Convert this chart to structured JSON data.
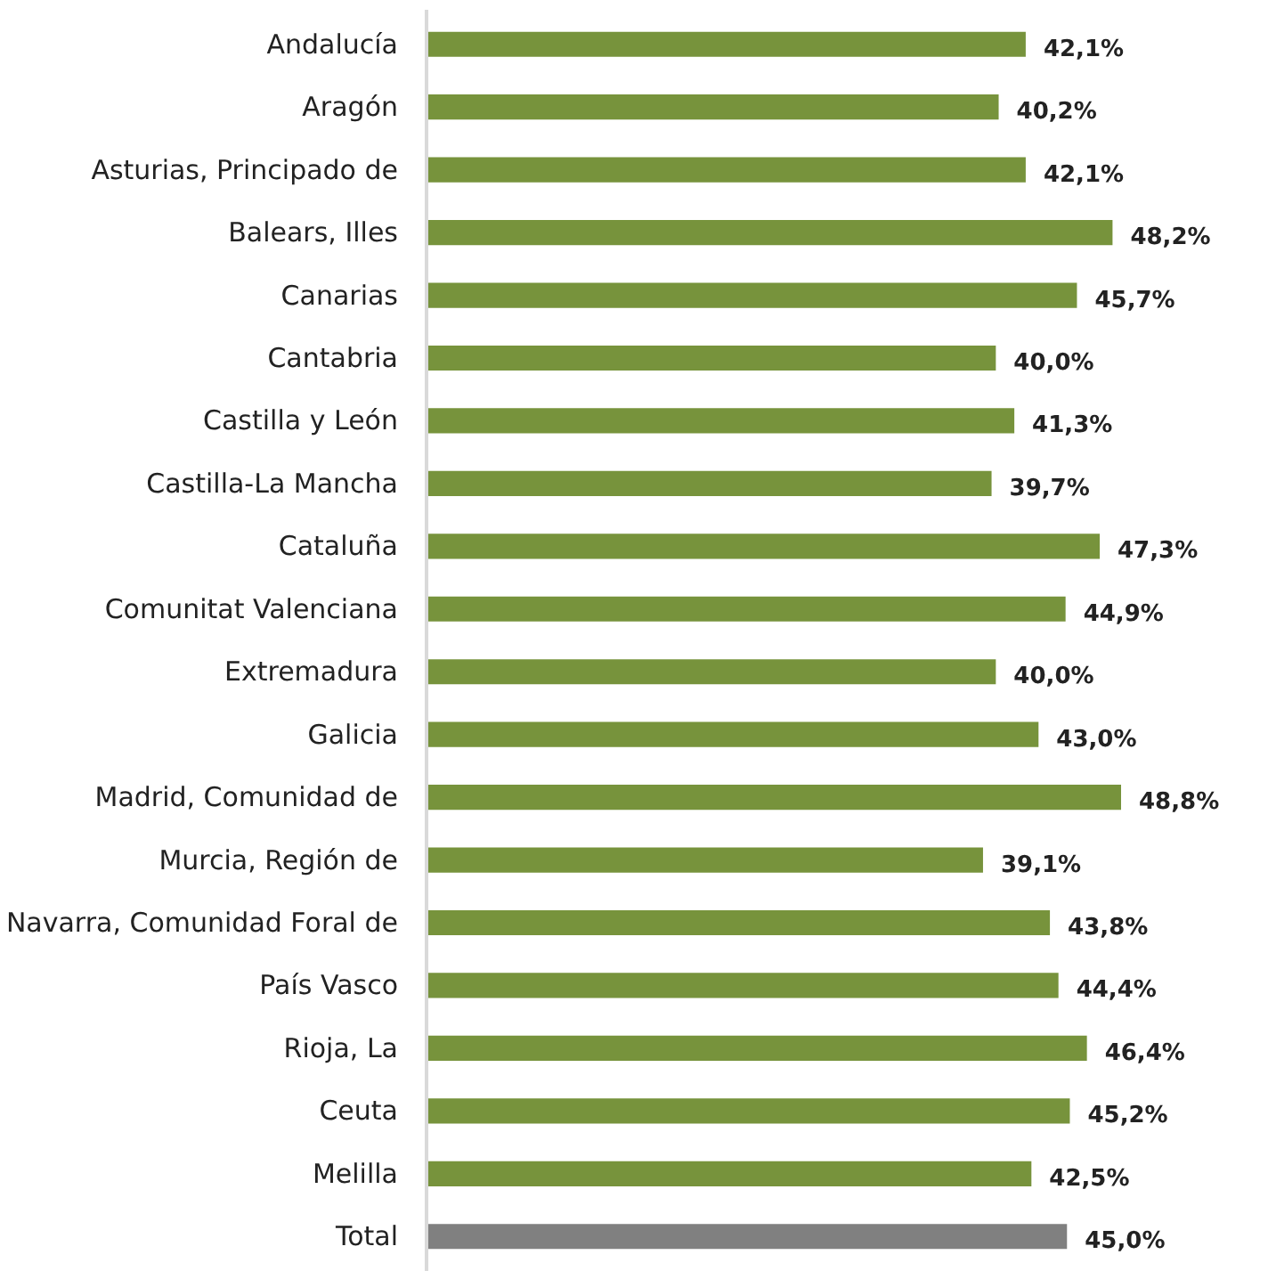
{
  "chart_data": {
    "type": "bar",
    "orientation": "horizontal",
    "categories": [
      "Andalucía",
      "Aragón",
      "Asturias, Principado de",
      "Balears, Illes",
      "Canarias",
      "Cantabria",
      "Castilla y León",
      "Castilla-La Mancha",
      "Cataluña",
      "Comunitat Valenciana",
      "Extremadura",
      "Galicia",
      "Madrid, Comunidad de",
      "Murcia, Región de",
      "Navarra, Comunidad Foral de",
      "País Vasco",
      "Rioja, La",
      "Ceuta",
      "Melilla",
      "Total"
    ],
    "values": [
      42.1,
      40.2,
      42.1,
      48.2,
      45.7,
      40.0,
      41.3,
      39.7,
      47.3,
      44.9,
      40.0,
      43.0,
      48.8,
      39.1,
      43.8,
      44.4,
      46.4,
      45.2,
      42.5,
      45.0
    ],
    "value_labels": [
      "42,1%",
      "40,2%",
      "42,1%",
      "48,2%",
      "45,7%",
      "40,0%",
      "41,3%",
      "39,7%",
      "47,3%",
      "44,9%",
      "40,0%",
      "43,0%",
      "48,8%",
      "39,1%",
      "43,8%",
      "44,4%",
      "46,4%",
      "45,2%",
      "42,5%",
      "45,0%"
    ],
    "colors": [
      "#77933c",
      "#77933c",
      "#77933c",
      "#77933c",
      "#77933c",
      "#77933c",
      "#77933c",
      "#77933c",
      "#77933c",
      "#77933c",
      "#77933c",
      "#77933c",
      "#77933c",
      "#77933c",
      "#77933c",
      "#77933c",
      "#77933c",
      "#77933c",
      "#77933c",
      "#808080"
    ]
  }
}
